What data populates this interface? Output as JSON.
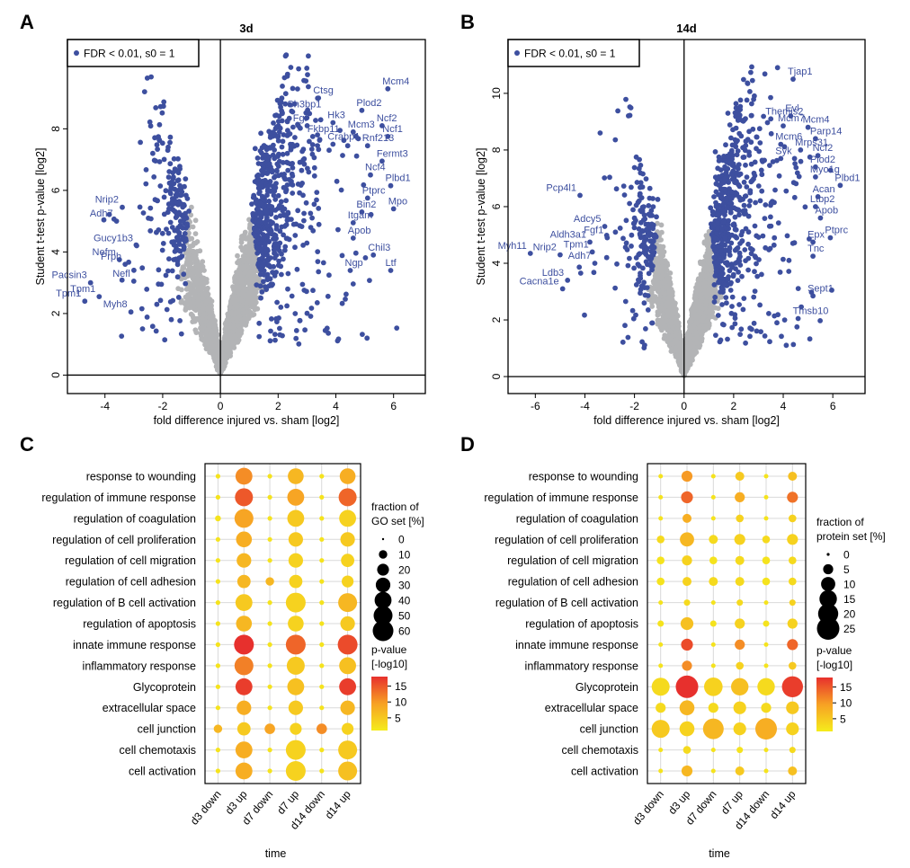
{
  "colors": {
    "significant": "#3d4f9f",
    "background_points": "#b3b4b6",
    "gene_label": "#3d4f9f",
    "pvalue_low": "#f5ec1c",
    "pvalue_mid": "#f7a124",
    "pvalue_high": "#e7302d",
    "grid": "#d9d9d9"
  },
  "chart_data": [
    {
      "id": "A",
      "type": "scatter",
      "panel_letter": "A",
      "title": "3d",
      "xlabel": "fold difference injured vs. sham [log2]",
      "ylabel": "Student t-test p-value [log2]",
      "xlim": [
        -5.3,
        7.1
      ],
      "ylim": [
        -0.6,
        10.9
      ],
      "xticks": [
        -4,
        -2,
        0,
        2,
        4,
        6
      ],
      "yticks": [
        0,
        2,
        4,
        6,
        8
      ],
      "legend": "FDR < 0.01, s0 = 1",
      "labeled_genes": [
        {
          "name": "Mcm4",
          "x": 5.8,
          "y": 9.3
        },
        {
          "name": "Ctsg",
          "x": 3.4,
          "y": 9.0
        },
        {
          "name": "Sh3bp1",
          "x": 2.5,
          "y": 8.55
        },
        {
          "name": "Plod2",
          "x": 4.9,
          "y": 8.6
        },
        {
          "name": "Fgr",
          "x": 2.7,
          "y": 8.1
        },
        {
          "name": "Hk3",
          "x": 3.9,
          "y": 8.2
        },
        {
          "name": "Ncf2",
          "x": 5.6,
          "y": 8.1
        },
        {
          "name": "Fkbp11",
          "x": 3.2,
          "y": 7.75
        },
        {
          "name": "Mcm3",
          "x": 4.6,
          "y": 7.9
        },
        {
          "name": "Ncf1",
          "x": 5.8,
          "y": 7.75
        },
        {
          "name": "Crabp1",
          "x": 3.9,
          "y": 7.5
        },
        {
          "name": "Rnf213",
          "x": 5.1,
          "y": 7.45
        },
        {
          "name": "Fermt3",
          "x": 5.6,
          "y": 6.95
        },
        {
          "name": "Ncf4",
          "x": 5.2,
          "y": 6.5
        },
        {
          "name": "Plbd1",
          "x": 5.9,
          "y": 6.15
        },
        {
          "name": "Ptprc",
          "x": 5.1,
          "y": 5.75
        },
        {
          "name": "Bin2",
          "x": 4.9,
          "y": 5.3
        },
        {
          "name": "Mpo",
          "x": 6.0,
          "y": 5.4
        },
        {
          "name": "Itgam",
          "x": 4.6,
          "y": 4.95
        },
        {
          "name": "Apob",
          "x": 4.6,
          "y": 4.45
        },
        {
          "name": "Chil3",
          "x": 5.3,
          "y": 3.9
        },
        {
          "name": "Ngp",
          "x": 4.5,
          "y": 3.4
        },
        {
          "name": "Ltf",
          "x": 5.9,
          "y": 3.4
        },
        {
          "name": "Nrip2",
          "x": -3.4,
          "y": 5.45
        },
        {
          "name": "Adh7",
          "x": -3.6,
          "y": 5.0
        },
        {
          "name": "Gucy1b3",
          "x": -2.9,
          "y": 4.2
        },
        {
          "name": "Nefm",
          "x": -3.5,
          "y": 3.75
        },
        {
          "name": "Prph",
          "x": -3.3,
          "y": 3.6
        },
        {
          "name": "Pacsin3",
          "x": -4.5,
          "y": 3.0
        },
        {
          "name": "Nefl",
          "x": -3.0,
          "y": 3.05
        },
        {
          "name": "Tpm1",
          "x": -4.2,
          "y": 2.55
        },
        {
          "name": "Tpm1",
          "x": -4.7,
          "y": 2.4
        },
        {
          "name": "Myh8",
          "x": -3.1,
          "y": 2.05
        }
      ]
    },
    {
      "id": "B",
      "type": "scatter",
      "panel_letter": "B",
      "title": "14d",
      "xlabel": "fold difference injured vs. sham [log2]",
      "ylabel": "Student t-test p-value [log2]",
      "xlim": [
        -7.1,
        7.3
      ],
      "ylim": [
        -0.6,
        11.9
      ],
      "xticks": [
        -6,
        -4,
        -2,
        0,
        2,
        4,
        6
      ],
      "yticks": [
        0,
        2,
        4,
        6,
        8,
        10
      ],
      "legend": "FDR < 0.01, s0 = 1",
      "labeled_genes": [
        {
          "name": "Tjap1",
          "x": 4.4,
          "y": 10.5
        },
        {
          "name": "Themis2",
          "x": 3.5,
          "y": 9.1
        },
        {
          "name": "Evl",
          "x": 4.3,
          "y": 9.2
        },
        {
          "name": "Mcm7",
          "x": 4.0,
          "y": 8.85
        },
        {
          "name": "Mcm4",
          "x": 5.0,
          "y": 8.8
        },
        {
          "name": "Parp14",
          "x": 5.3,
          "y": 8.4
        },
        {
          "name": "Mcm6",
          "x": 3.9,
          "y": 8.2
        },
        {
          "name": "Mrps31",
          "x": 4.7,
          "y": 8.0
        },
        {
          "name": "Syk",
          "x": 3.9,
          "y": 7.7
        },
        {
          "name": "Ncf2",
          "x": 5.4,
          "y": 7.8
        },
        {
          "name": "Plod2",
          "x": 5.3,
          "y": 7.4
        },
        {
          "name": "Myo1g",
          "x": 5.3,
          "y": 7.05
        },
        {
          "name": "Plbd1",
          "x": 6.3,
          "y": 6.75
        },
        {
          "name": "Acan",
          "x": 5.4,
          "y": 6.35
        },
        {
          "name": "Ltbp2",
          "x": 5.3,
          "y": 6.0
        },
        {
          "name": "Apob",
          "x": 5.5,
          "y": 5.6
        },
        {
          "name": "Ptprc",
          "x": 5.9,
          "y": 4.9
        },
        {
          "name": "Epx",
          "x": 5.2,
          "y": 4.75
        },
        {
          "name": "Tnc",
          "x": 5.2,
          "y": 4.25
        },
        {
          "name": "Sept1",
          "x": 5.2,
          "y": 2.85
        },
        {
          "name": "Tmsb10",
          "x": 4.6,
          "y": 2.05
        },
        {
          "name": "Pcp4l1",
          "x": -4.2,
          "y": 6.4
        },
        {
          "name": "Adcy5",
          "x": -3.2,
          "y": 5.3
        },
        {
          "name": "Fgf1",
          "x": -3.1,
          "y": 4.9
        },
        {
          "name": "Aldh3a1",
          "x": -3.8,
          "y": 4.75
        },
        {
          "name": "Myh11",
          "x": -6.2,
          "y": 4.35
        },
        {
          "name": "Nrip2",
          "x": -5.0,
          "y": 4.3
        },
        {
          "name": "Tpm1",
          "x": -3.7,
          "y": 4.4
        },
        {
          "name": "Adh7",
          "x": -3.6,
          "y": 4.0
        },
        {
          "name": "Ldb3",
          "x": -4.7,
          "y": 3.4
        },
        {
          "name": "Cacna1e",
          "x": -4.9,
          "y": 3.1
        }
      ]
    },
    {
      "id": "C",
      "type": "scatter",
      "subtype": "dot-plot",
      "panel_letter": "C",
      "xlabel": "time",
      "categories": [
        "d3 down",
        "d3 up",
        "d7 down",
        "d7 up",
        "d14 down",
        "d14 up"
      ],
      "terms": [
        "response to wounding",
        "regulation of immune response",
        "regulation of coagulation",
        "regulation of cell proliferation",
        "regulation of cell migration",
        "regulation of cell adhesion",
        "regulation of B cell activation",
        "regulation of apoptosis",
        "innate immune response",
        "inflammatory response",
        "Glycoprotein",
        "extracellular space",
        "cell junction",
        "cell chemotaxis",
        "cell activation"
      ],
      "size_legend_title_1": "fraction of",
      "size_legend_title_2": "GO set [%]",
      "size_legend_values": [
        0,
        10,
        20,
        30,
        40,
        50,
        60
      ],
      "color_legend_title_1": "p-value",
      "color_legend_title_2": "[-log10]",
      "color_legend_ticks": [
        15,
        10,
        5
      ],
      "color_range": [
        1,
        18
      ],
      "size_scale_max": 60,
      "fraction": [
        [
          3,
          40,
          3,
          35,
          3,
          35
        ],
        [
          3,
          45,
          3,
          40,
          3,
          45
        ],
        [
          5,
          50,
          3,
          40,
          3,
          40
        ],
        [
          3,
          35,
          3,
          30,
          3,
          30
        ],
        [
          3,
          30,
          3,
          30,
          3,
          25
        ],
        [
          3,
          25,
          10,
          25,
          3,
          20
        ],
        [
          3,
          40,
          3,
          55,
          3,
          50
        ],
        [
          3,
          35,
          3,
          35,
          3,
          30
        ],
        [
          3,
          55,
          3,
          55,
          3,
          55
        ],
        [
          3,
          50,
          3,
          45,
          3,
          40
        ],
        [
          3,
          40,
          3,
          40,
          3,
          40
        ],
        [
          3,
          30,
          3,
          30,
          3,
          30
        ],
        [
          10,
          25,
          15,
          20,
          15,
          20
        ],
        [
          3,
          40,
          3,
          55,
          3,
          50
        ],
        [
          3,
          40,
          3,
          55,
          3,
          50
        ]
      ],
      "pvalue": [
        [
          2,
          11,
          2,
          7,
          2,
          8
        ],
        [
          2,
          15,
          2,
          9,
          2,
          14
        ],
        [
          2,
          9,
          2,
          5,
          2,
          4
        ],
        [
          2,
          8,
          2,
          5,
          2,
          5
        ],
        [
          2,
          7,
          2,
          4,
          2,
          4
        ],
        [
          2,
          7,
          7,
          4,
          2,
          4
        ],
        [
          2,
          5,
          2,
          4,
          2,
          7
        ],
        [
          2,
          7,
          2,
          4,
          2,
          5
        ],
        [
          2,
          18,
          2,
          14,
          2,
          16
        ],
        [
          2,
          12,
          2,
          5,
          2,
          6
        ],
        [
          2,
          17,
          2,
          6,
          2,
          17
        ],
        [
          2,
          8,
          2,
          5,
          2,
          7
        ],
        [
          7,
          5,
          9,
          4,
          11,
          4
        ],
        [
          2,
          8,
          2,
          4,
          2,
          5
        ],
        [
          2,
          8,
          2,
          4,
          2,
          6
        ]
      ]
    },
    {
      "id": "D",
      "type": "scatter",
      "subtype": "dot-plot",
      "panel_letter": "D",
      "xlabel": "time",
      "categories": [
        "d3 down",
        "d3 up",
        "d7 down",
        "d7 up",
        "d14 down",
        "d14 up"
      ],
      "terms": [
        "response to wounding",
        "regulation of immune response",
        "regulation of coagulation",
        "regulation of cell proliferation",
        "regulation of cell migration",
        "regulation of cell adhesion",
        "regulation of B cell activation",
        "regulation of apoptosis",
        "innate immune response",
        "inflammatory response",
        "Glycoprotein",
        "extracellular space",
        "cell junction",
        "cell chemotaxis",
        "cell activation"
      ],
      "size_legend_title_1": "fraction of",
      "size_legend_title_2": "protein set [%]",
      "size_legend_values": [
        0,
        5,
        10,
        15,
        20,
        25
      ],
      "color_legend_title_1": "p-value",
      "color_legend_title_2": "[-log10]",
      "color_legend_ticks": [
        15,
        10,
        5
      ],
      "color_range": [
        1,
        18
      ],
      "size_scale_max": 25,
      "fraction": [
        [
          1,
          6,
          1,
          4,
          1,
          4
        ],
        [
          1,
          7,
          1,
          5,
          1,
          6
        ],
        [
          1,
          4,
          1,
          3,
          1,
          3
        ],
        [
          3,
          10,
          4,
          6,
          3,
          6
        ],
        [
          3,
          5,
          3,
          4,
          3,
          3
        ],
        [
          3,
          4,
          4,
          4,
          3,
          3
        ],
        [
          1,
          2,
          1,
          2,
          1,
          2
        ],
        [
          2,
          8,
          2,
          5,
          2,
          5
        ],
        [
          1,
          7,
          1,
          5,
          1,
          6
        ],
        [
          1,
          5,
          1,
          3,
          1,
          3
        ],
        [
          16,
          25,
          17,
          15,
          15,
          22
        ],
        [
          5,
          11,
          5,
          8,
          5,
          8
        ],
        [
          16,
          11,
          21,
          8,
          23,
          8
        ],
        [
          1,
          3,
          1,
          2,
          1,
          2
        ],
        [
          1,
          6,
          1,
          4,
          1,
          4
        ]
      ],
      "pvalue": [
        [
          2,
          10,
          2,
          5,
          2,
          6
        ],
        [
          2,
          14,
          2,
          8,
          2,
          13
        ],
        [
          2,
          8,
          2,
          4,
          2,
          4
        ],
        [
          3,
          7,
          3,
          4,
          3,
          4
        ],
        [
          2,
          4,
          2,
          3,
          2,
          3
        ],
        [
          2,
          4,
          3,
          3,
          2,
          3
        ],
        [
          2,
          3,
          2,
          3,
          2,
          4
        ],
        [
          2,
          6,
          2,
          4,
          2,
          4
        ],
        [
          2,
          16,
          2,
          11,
          2,
          14
        ],
        [
          2,
          11,
          2,
          4,
          2,
          5
        ],
        [
          3,
          18,
          4,
          6,
          3,
          17
        ],
        [
          3,
          7,
          3,
          4,
          3,
          5
        ],
        [
          5,
          4,
          7,
          4,
          8,
          4
        ],
        [
          2,
          3,
          2,
          2,
          2,
          3
        ],
        [
          2,
          7,
          2,
          5,
          2,
          6
        ]
      ]
    }
  ]
}
